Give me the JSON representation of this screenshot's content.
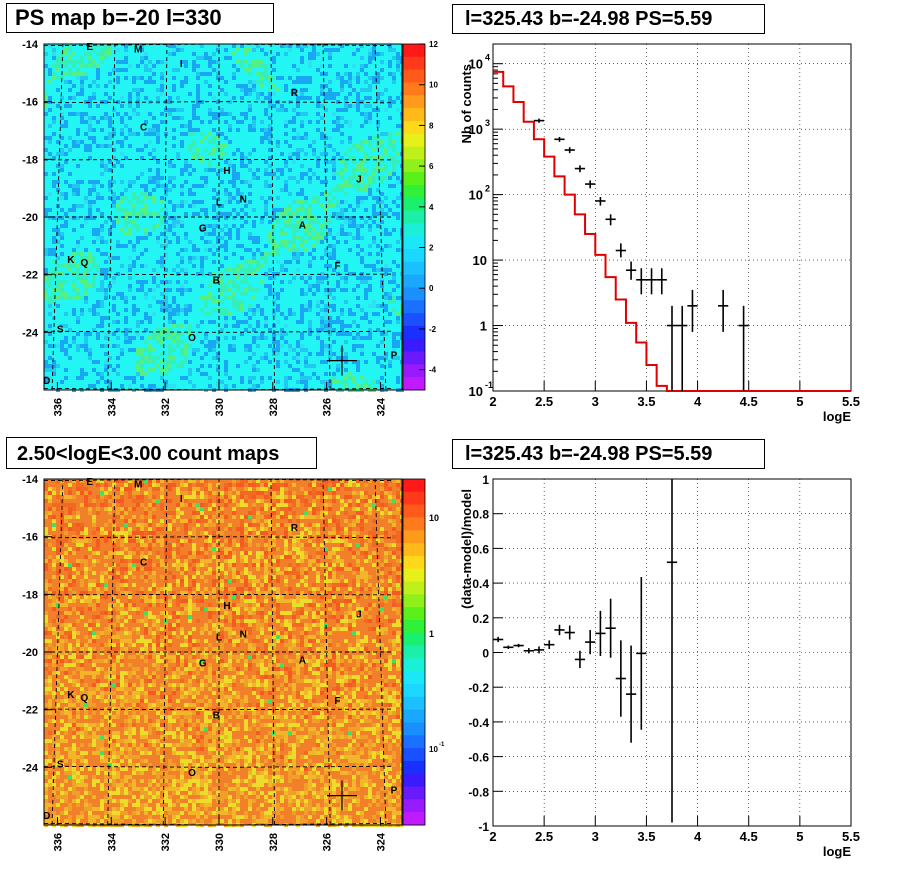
{
  "titles": {
    "ps_map": "PS map b=-20 l=330",
    "spectrum": "l=325.43 b=-24.98 PS=5.59",
    "count_map": "2.50<logE<3.00 count maps",
    "residual": "l=325.43 b=-24.98 PS=5.59"
  },
  "map_axes": {
    "y_ticks": [
      "-14",
      "-16",
      "-18",
      "-20",
      "-22",
      "-24"
    ],
    "x_ticks": [
      "336",
      "334",
      "332",
      "330",
      "328",
      "326",
      "324"
    ]
  },
  "map_labels": [
    {
      "text": "E",
      "l": 334.8,
      "b": -14.2
    },
    {
      "text": "M",
      "l": 333.0,
      "b": -14.3
    },
    {
      "text": "I",
      "l": 331.4,
      "b": -14.8
    },
    {
      "text": "R",
      "l": 327.2,
      "b": -15.8
    },
    {
      "text": "C",
      "l": 332.8,
      "b": -17.0
    },
    {
      "text": "H",
      "l": 329.7,
      "b": -18.5
    },
    {
      "text": "J",
      "l": 324.8,
      "b": -18.8
    },
    {
      "text": "L",
      "l": 330.0,
      "b": -19.6
    },
    {
      "text": "N",
      "l": 329.1,
      "b": -19.5
    },
    {
      "text": "G",
      "l": 330.6,
      "b": -20.5
    },
    {
      "text": "A",
      "l": 326.9,
      "b": -20.4
    },
    {
      "text": "K",
      "l": 335.5,
      "b": -21.6
    },
    {
      "text": "Q",
      "l": 335.0,
      "b": -21.7
    },
    {
      "text": "F",
      "l": 325.6,
      "b": -21.8
    },
    {
      "text": "B",
      "l": 330.1,
      "b": -22.3
    },
    {
      "text": "S",
      "l": 335.9,
      "b": -24.0
    },
    {
      "text": "O",
      "l": 331.0,
      "b": -24.3
    },
    {
      "text": "P",
      "l": 323.5,
      "b": -24.9
    },
    {
      "text": "D",
      "l": 336.4,
      "b": -25.8
    }
  ],
  "marker": {
    "l": 325.43,
    "b": -24.98
  },
  "ps_colorbar": {
    "ticks": [
      "12",
      "10",
      "8",
      "6",
      "4",
      "2",
      "0",
      "-2",
      "-4"
    ]
  },
  "count_colorbar": {
    "ticks": [
      "10",
      "1",
      "10",
      "-1"
    ]
  },
  "colors": {
    "ps_background": "#23f4f4",
    "count_background": "#f2802a",
    "model_line": "#e00000",
    "data_points": "#000000"
  },
  "chart_data": [
    {
      "type": "heatmap",
      "title": "PS map b=-20 l=330",
      "xlabel": "",
      "ylabel": "",
      "xlim": [
        336.5,
        323.2
      ],
      "ylim": [
        -26.0,
        -14.0
      ],
      "zlim": [
        -5,
        12
      ],
      "colorbar_ticks": [
        12,
        10,
        8,
        6,
        4,
        2,
        0,
        -2,
        -4
      ]
    },
    {
      "type": "line",
      "title": "l=325.43 b=-24.98 PS=5.59",
      "xlabel": "logE",
      "ylabel": "Nb of counts",
      "xlim": [
        2,
        5.5
      ],
      "ylim": [
        0.1,
        20000
      ],
      "yscale": "log",
      "x_ticks": [
        "2",
        "2.5",
        "3",
        "3.5",
        "4",
        "4.5",
        "5",
        "5.5"
      ],
      "y_ticks": [
        "10^-1",
        "1",
        "10",
        "10^2",
        "10^3",
        "10^4"
      ],
      "grid": true,
      "model": {
        "edges": [
          2.0,
          2.1,
          2.2,
          2.3,
          2.4,
          2.5,
          2.6,
          2.7,
          2.8,
          2.9,
          3.0,
          3.1,
          3.2,
          3.3,
          3.4,
          3.5,
          3.6,
          3.7,
          3.8,
          3.9,
          4.0,
          5.5
        ],
        "values": [
          7500,
          4500,
          2600,
          1300,
          700,
          380,
          190,
          100,
          50,
          25,
          12,
          5.5,
          2.5,
          1.1,
          0.55,
          0.25,
          0.12,
          0.1,
          0.1,
          0.1,
          0.1
        ]
      },
      "data": [
        {
          "x": 2.45,
          "y": 1350,
          "err": [
            1250,
            1450
          ]
        },
        {
          "x": 2.65,
          "y": 700,
          "err": [
            640,
            760
          ]
        },
        {
          "x": 2.75,
          "y": 480,
          "err": [
            430,
            530
          ]
        },
        {
          "x": 2.85,
          "y": 250,
          "err": [
            220,
            280
          ]
        },
        {
          "x": 2.95,
          "y": 145,
          "err": [
            125,
            165
          ]
        },
        {
          "x": 3.05,
          "y": 80,
          "err": [
            68,
            92
          ]
        },
        {
          "x": 3.15,
          "y": 42,
          "err": [
            34,
            50
          ]
        },
        {
          "x": 3.25,
          "y": 14,
          "err": [
            11,
            18
          ]
        },
        {
          "x": 3.35,
          "y": 7,
          "err": [
            5,
            9.5
          ]
        },
        {
          "x": 3.45,
          "y": 5,
          "err": [
            3,
            7.5
          ]
        },
        {
          "x": 3.55,
          "y": 5,
          "err": [
            3,
            7.5
          ]
        },
        {
          "x": 3.65,
          "y": 5,
          "err": [
            3,
            7.5
          ]
        },
        {
          "x": 3.75,
          "y": 1,
          "err": [
            0.1,
            2
          ]
        },
        {
          "x": 3.85,
          "y": 1,
          "err": [
            0.1,
            2
          ]
        },
        {
          "x": 3.95,
          "y": 2,
          "err": [
            0.8,
            3.5
          ]
        },
        {
          "x": 4.25,
          "y": 2,
          "err": [
            0.8,
            3.5
          ]
        },
        {
          "x": 4.45,
          "y": 1,
          "err": [
            0.1,
            2
          ]
        }
      ]
    },
    {
      "type": "heatmap",
      "title": "2.50<logE<3.00 count maps",
      "xlabel": "",
      "ylabel": "",
      "xlim": [
        336.5,
        323.2
      ],
      "ylim": [
        -26.0,
        -14.0
      ],
      "zscale": "log",
      "colorbar_ticks": [
        "10",
        "1",
        "10^-1"
      ]
    },
    {
      "type": "scatter",
      "title": "l=325.43 b=-24.98 PS=5.59",
      "xlabel": "logE",
      "ylabel": "(data-model)/model",
      "xlim": [
        2,
        5.5
      ],
      "ylim": [
        -1,
        1
      ],
      "x_ticks": [
        "2",
        "2.5",
        "3",
        "3.5",
        "4",
        "4.5",
        "5",
        "5.5"
      ],
      "y_ticks": [
        "1",
        "0.8",
        "0.6",
        "0.4",
        "0.2",
        "0",
        "-0.2",
        "-0.4",
        "-0.6",
        "-0.8",
        "-1"
      ],
      "grid": true,
      "data": [
        {
          "x": 2.05,
          "y": 0.075,
          "err": 0.015
        },
        {
          "x": 2.15,
          "y": 0.03,
          "err": 0.01
        },
        {
          "x": 2.25,
          "y": 0.04,
          "err": 0.01
        },
        {
          "x": 2.35,
          "y": 0.01,
          "err": 0.015
        },
        {
          "x": 2.45,
          "y": 0.015,
          "err": 0.02
        },
        {
          "x": 2.55,
          "y": 0.045,
          "err": 0.025
        },
        {
          "x": 2.65,
          "y": 0.13,
          "err": 0.03
        },
        {
          "x": 2.75,
          "y": 0.115,
          "err": 0.04
        },
        {
          "x": 2.85,
          "y": -0.04,
          "err": 0.05
        },
        {
          "x": 2.95,
          "y": 0.06,
          "err": 0.07
        },
        {
          "x": 3.05,
          "y": 0.11,
          "err": 0.13
        },
        {
          "x": 3.15,
          "y": 0.14,
          "err": 0.17
        },
        {
          "x": 3.25,
          "y": -0.15,
          "err": 0.22
        },
        {
          "x": 3.35,
          "y": -0.24,
          "err": 0.28
        },
        {
          "x": 3.45,
          "y": -0.005,
          "err": 0.44
        },
        {
          "x": 3.75,
          "y": 0.52,
          "err": 1.5
        }
      ]
    }
  ]
}
